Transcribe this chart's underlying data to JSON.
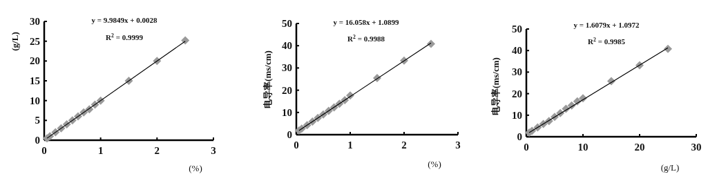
{
  "chart_data": [
    {
      "type": "scatter",
      "xlabel": "(%)",
      "ylabel": "(g/L)",
      "annotations": [
        "y = 9.9849x + 0.0028",
        "R$^{2}$ = 0.9999"
      ],
      "xlim": [
        0,
        3
      ],
      "ylim": [
        0,
        30
      ],
      "xticks": [
        0,
        1,
        2,
        3
      ],
      "yticks": [
        0,
        5,
        10,
        15,
        20,
        25,
        30
      ],
      "grid": false,
      "series": [
        {
          "type": "scatter",
          "marker": "diamond",
          "color": "#9a9a9a",
          "x": [
            0.05,
            0.1,
            0.2,
            0.3,
            0.4,
            0.5,
            0.6,
            0.7,
            0.8,
            0.9,
            1.0,
            1.5,
            2.0,
            2.5
          ],
          "values": [
            0.5,
            1,
            2,
            3,
            4,
            5,
            6,
            7,
            7.8,
            9,
            10,
            15,
            20,
            25.2
          ]
        },
        {
          "type": "line",
          "color": "#000000",
          "x": [
            0.05,
            2.5
          ],
          "values": [
            0.5,
            25.0
          ]
        }
      ]
    },
    {
      "type": "scatter",
      "xlabel": "(%)",
      "ylabel": "电导率(ms/cm)",
      "annotations": [
        "y = 16.058x + 1.0899",
        "R$^{2}$ = 0.9988"
      ],
      "xlim": [
        0,
        3
      ],
      "ylim": [
        0,
        50
      ],
      "xticks": [
        0,
        1,
        2,
        3
      ],
      "yticks": [
        0,
        10,
        20,
        30,
        40,
        50
      ],
      "grid": false,
      "series": [
        {
          "type": "scatter",
          "marker": "diamond",
          "color": "#9a9a9a",
          "x": [
            0.05,
            0.1,
            0.2,
            0.3,
            0.4,
            0.5,
            0.6,
            0.7,
            0.8,
            0.9,
            1.0,
            1.5,
            2.0,
            2.5
          ],
          "values": [
            1.9,
            2.7,
            4.3,
            5.9,
            7.5,
            9.1,
            10.7,
            12.3,
            13.9,
            15.5,
            17.6,
            25.5,
            33.3,
            40.8
          ]
        },
        {
          "type": "line",
          "color": "#000000",
          "x": [
            0.05,
            2.5
          ],
          "values": [
            1.9,
            41.2
          ]
        }
      ]
    },
    {
      "type": "scatter",
      "xlabel": "(g/L)",
      "ylabel": "电导率(ms/cm)",
      "annotations": [
        "y = 1.6079x + 1.0972",
        "R$^{2}$ = 0.9985"
      ],
      "xlim": [
        0,
        30
      ],
      "ylim": [
        0,
        50
      ],
      "xticks": [
        0,
        10,
        20,
        30
      ],
      "yticks": [
        0,
        10,
        20,
        30,
        40,
        50
      ],
      "grid": false,
      "series": [
        {
          "type": "scatter",
          "marker": "diamond",
          "color": "#9a9a9a",
          "x": [
            0.5,
            1,
            2,
            3,
            4,
            5,
            6,
            7,
            8,
            9,
            10,
            15,
            20,
            25
          ],
          "values": [
            1.9,
            2.7,
            4.3,
            5.9,
            7.3,
            9.2,
            11,
            13,
            14.5,
            16.4,
            17.9,
            25.8,
            33.2,
            40.8
          ]
        },
        {
          "type": "line",
          "color": "#000000",
          "x": [
            0.5,
            25
          ],
          "values": [
            1.9,
            41.3
          ]
        }
      ]
    }
  ]
}
